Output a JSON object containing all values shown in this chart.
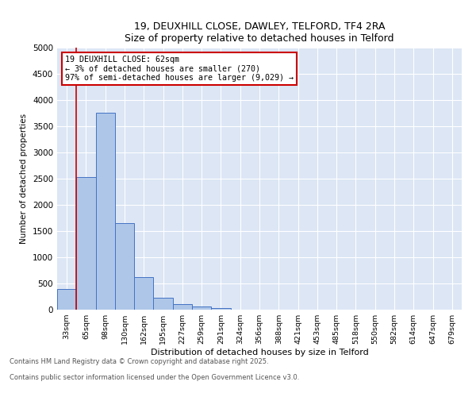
{
  "title_line1": "19, DEUXHILL CLOSE, DAWLEY, TELFORD, TF4 2RA",
  "title_line2": "Size of property relative to detached houses in Telford",
  "xlabel": "Distribution of detached houses by size in Telford",
  "ylabel": "Number of detached properties",
  "categories": [
    "33sqm",
    "65sqm",
    "98sqm",
    "130sqm",
    "162sqm",
    "195sqm",
    "227sqm",
    "259sqm",
    "291sqm",
    "324sqm",
    "356sqm",
    "388sqm",
    "421sqm",
    "453sqm",
    "485sqm",
    "518sqm",
    "550sqm",
    "582sqm",
    "614sqm",
    "647sqm",
    "679sqm"
  ],
  "values": [
    390,
    2530,
    3760,
    1650,
    620,
    230,
    100,
    55,
    30,
    0,
    0,
    0,
    0,
    0,
    0,
    0,
    0,
    0,
    0,
    0,
    0
  ],
  "bar_color": "#aec6e8",
  "bar_edge_color": "#4472c4",
  "vline_x_index": 1,
  "vline_color": "#cc0000",
  "annotation_text": "19 DEUXHILL CLOSE: 62sqm\n← 3% of detached houses are smaller (270)\n97% of semi-detached houses are larger (9,029) →",
  "annotation_box_color": "#cc0000",
  "ylim": [
    0,
    5000
  ],
  "yticks": [
    0,
    500,
    1000,
    1500,
    2000,
    2500,
    3000,
    3500,
    4000,
    4500,
    5000
  ],
  "background_color": "#dce6f5",
  "grid_color": "#ffffff",
  "footer_line1": "Contains HM Land Registry data © Crown copyright and database right 2025.",
  "footer_line2": "Contains public sector information licensed under the Open Government Licence v3.0."
}
